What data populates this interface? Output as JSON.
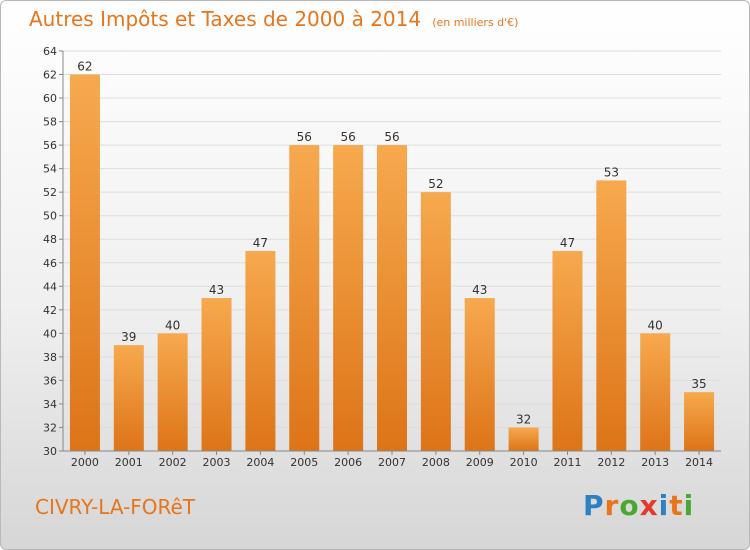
{
  "title": "Autres Impôts et Taxes de 2000 à 2014",
  "subtitle": "(en milliers d'€)",
  "commune": "CIVRY-LA-FORêT",
  "logo": {
    "text": "Proxiti",
    "letter_colors": [
      "#2f7fc1",
      "#e8751a",
      "#4aa832",
      "#e23b2e",
      "#2f7fc1",
      "#e8751a",
      "#4aa832"
    ]
  },
  "colors": {
    "bar_light": "#f7a94e",
    "bar_dark": "#dd7418",
    "accent": "#e8751a",
    "grid": "#dddddd"
  },
  "chart_data": {
    "type": "bar",
    "categories": [
      "2000",
      "2001",
      "2002",
      "2003",
      "2004",
      "2005",
      "2006",
      "2007",
      "2008",
      "2009",
      "2010",
      "2011",
      "2012",
      "2013",
      "2014"
    ],
    "values": [
      62,
      39,
      40,
      43,
      47,
      56,
      56,
      56,
      52,
      43,
      32,
      47,
      53,
      40,
      35
    ],
    "ylim": [
      30,
      64
    ],
    "yticks": [
      30,
      32,
      34,
      36,
      38,
      40,
      42,
      44,
      46,
      48,
      50,
      52,
      54,
      56,
      58,
      60,
      62,
      64
    ],
    "grid": true,
    "xlabel": "",
    "ylabel": ""
  }
}
